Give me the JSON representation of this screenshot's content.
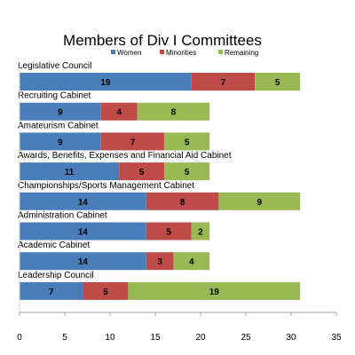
{
  "chart_data": {
    "type": "bar",
    "orientation": "horizontal",
    "stacked": true,
    "title": "Members of Div I Committees",
    "xlabel": "",
    "ylabel": "",
    "xlim": [
      0,
      35
    ],
    "x_ticks": [
      0,
      5,
      10,
      15,
      20,
      25,
      30,
      35
    ],
    "grid": false,
    "legend_position": "top",
    "categories": [
      "Legislative Council",
      "Recruiting Cabinet",
      "Amateurism Cabinet",
      "Awards, Benefits, Expenses and Financial Aid Cabinet",
      "Championships/Sports Management Cabinet",
      "Administration Cabinet",
      "Academic Cabinet",
      "Leadership Council"
    ],
    "series": [
      {
        "name": "Women",
        "color": "#4a7ebb",
        "values": [
          19,
          9,
          9,
          11,
          14,
          14,
          14,
          7
        ]
      },
      {
        "name": "Minorities",
        "color": "#be4b48",
        "values": [
          7,
          4,
          7,
          5,
          8,
          5,
          3,
          5
        ]
      },
      {
        "name": "Remaining",
        "color": "#98b954",
        "values": [
          5,
          8,
          5,
          5,
          9,
          2,
          4,
          19
        ]
      }
    ]
  }
}
